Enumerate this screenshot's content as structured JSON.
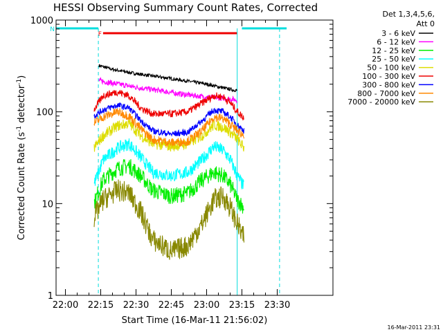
{
  "chart_data": {
    "type": "line",
    "title": "HESSI Observing Summary Count Rates, Corrected",
    "xlabel": "Start Time (16-Mar-11 21:56:02)",
    "ylabel": "Corrected Count Rate (s⁻¹ detector⁻¹)",
    "ylabel_parts": {
      "a": "Corrected Count Rate (s",
      "b": "-1",
      "c": " detector",
      "d": "-1",
      "e": ")"
    },
    "x_ticks": [
      "22:00",
      "22:15",
      "22:30",
      "22:45",
      "23:00",
      "23:15",
      "23:30"
    ],
    "y_ticks": [
      "1",
      "10",
      "100",
      "1000"
    ],
    "ylim": [
      1,
      1000
    ],
    "yscale": "log",
    "grid": false,
    "legend": {
      "placement": "top-right",
      "header": [
        "Det 1,3,4,5,6,",
        "Att 0"
      ],
      "entries": [
        {
          "label": "3 - 6 keV",
          "color": "#000000"
        },
        {
          "label": "6 - 12 keV",
          "color": "#ff00ff"
        },
        {
          "label": "12 - 25 keV",
          "color": "#00ee00"
        },
        {
          "label": "25 - 50 keV",
          "color": "#00ffff"
        },
        {
          "label": "50 - 100 keV",
          "color": "#dddd00"
        },
        {
          "label": "100 - 300 keV",
          "color": "#ee0000"
        },
        {
          "label": "300 - 800 keV",
          "color": "#0000ff"
        },
        {
          "label": "800 - 7000 keV",
          "color": "#ff8800"
        },
        {
          "label": "7000 - 20000 keV",
          "color": "#888800"
        }
      ]
    },
    "flags": [
      {
        "label": "F",
        "color": "#ee0000",
        "x": [
          "22:16",
          "23:13"
        ]
      },
      {
        "label": "N",
        "color": "#00dddd",
        "x": [
          "21:56",
          "22:14"
        ]
      },
      {
        "label": "",
        "color": "#00dddd",
        "x": [
          "23:15",
          "23:34"
        ]
      }
    ],
    "night_boundaries": [
      "22:14",
      "23:13",
      "23:31"
    ],
    "series": [
      {
        "name": "3 - 6 keV",
        "color": "#000000",
        "x": [
          "22:14",
          "22:20",
          "22:30",
          "22:40",
          "22:50",
          "23:00",
          "23:08",
          "23:13"
        ],
        "values": [
          320,
          290,
          260,
          240,
          220,
          200,
          180,
          170
        ]
      },
      {
        "name": "6 - 12 keV",
        "color": "#ff00ff",
        "x": [
          "22:14",
          "22:20",
          "22:30",
          "22:40",
          "22:50",
          "23:00",
          "23:08",
          "23:13"
        ],
        "values": [
          220,
          205,
          185,
          170,
          155,
          145,
          140,
          135
        ]
      },
      {
        "name": "12 - 25 keV",
        "color": "#00ee00",
        "x": [
          "22:12",
          "22:16",
          "22:22",
          "22:27",
          "22:32",
          "22:37",
          "22:45",
          "22:52",
          "22:58",
          "23:03",
          "23:07",
          "23:10",
          "23:13",
          "23:16"
        ],
        "values": [
          10,
          18,
          24,
          26,
          20,
          14,
          12,
          13,
          18,
          22,
          20,
          16,
          11,
          9
        ]
      },
      {
        "name": "25 - 50 keV",
        "color": "#00ffff",
        "x": [
          "22:12",
          "22:16",
          "22:22",
          "22:27",
          "22:32",
          "22:37",
          "22:45",
          "22:52",
          "22:58",
          "23:03",
          "23:07",
          "23:10",
          "23:13",
          "23:16"
        ],
        "values": [
          16,
          30,
          40,
          45,
          32,
          22,
          20,
          22,
          30,
          42,
          38,
          30,
          20,
          15
        ]
      },
      {
        "name": "50 - 100 keV",
        "color": "#dddd00",
        "x": [
          "22:12",
          "22:16",
          "22:22",
          "22:27",
          "22:32",
          "22:37",
          "22:45",
          "22:52",
          "22:58",
          "23:03",
          "23:07",
          "23:10",
          "23:13",
          "23:16"
        ],
        "values": [
          40,
          55,
          70,
          75,
          55,
          45,
          42,
          45,
          55,
          72,
          68,
          60,
          50,
          40
        ]
      },
      {
        "name": "100 - 300 keV",
        "color": "#ee0000",
        "x": [
          "22:12",
          "22:16",
          "22:22",
          "22:27",
          "22:32",
          "22:37",
          "22:45",
          "22:52",
          "22:58",
          "23:03",
          "23:07",
          "23:10",
          "23:13",
          "23:16"
        ],
        "values": [
          105,
          150,
          165,
          150,
          110,
          95,
          95,
          100,
          125,
          150,
          145,
          125,
          100,
          85
        ]
      },
      {
        "name": "300 - 800 keV",
        "color": "#0000ff",
        "x": [
          "22:12",
          "22:16",
          "22:22",
          "22:27",
          "22:32",
          "22:37",
          "22:45",
          "22:52",
          "22:58",
          "23:03",
          "23:07",
          "23:10",
          "23:13",
          "23:16"
        ],
        "values": [
          90,
          105,
          118,
          110,
          80,
          62,
          57,
          60,
          80,
          105,
          100,
          88,
          72,
          62
        ]
      },
      {
        "name": "800 - 7000 keV",
        "color": "#ff8800",
        "x": [
          "22:12",
          "22:16",
          "22:22",
          "22:27",
          "22:32",
          "22:37",
          "22:45",
          "22:52",
          "22:58",
          "23:03",
          "23:07",
          "23:10",
          "23:13",
          "23:16"
        ],
        "values": [
          75,
          88,
          100,
          90,
          65,
          50,
          46,
          48,
          62,
          88,
          84,
          74,
          62,
          55
        ]
      },
      {
        "name": "7000 - 20000 keV",
        "color": "#888800",
        "x": [
          "22:12",
          "22:16",
          "22:22",
          "22:27",
          "22:32",
          "22:37",
          "22:45",
          "22:52",
          "22:58",
          "23:03",
          "23:07",
          "23:10",
          "23:13",
          "23:16"
        ],
        "values": [
          7,
          11,
          14,
          13,
          8,
          4,
          3,
          3.5,
          6,
          11,
          12,
          9,
          6,
          4
        ]
      }
    ]
  },
  "footer_timestamp": "16-Mar-2011 23:31"
}
